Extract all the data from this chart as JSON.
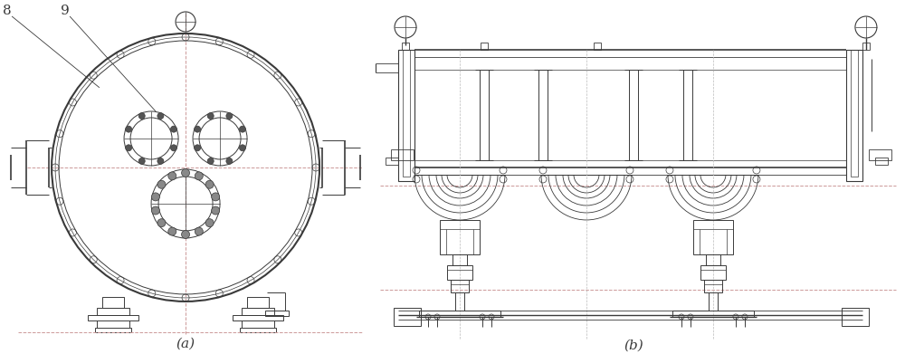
{
  "bg_color": "#ffffff",
  "lc": "#3a3a3a",
  "lc_thin": 0.5,
  "lc_med": 1.0,
  "lc_thick": 1.6,
  "dash_color": "#aaaaaa",
  "cdash_color": "#ccaaaa",
  "green": "#006600",
  "label_8": "8",
  "label_9": "9",
  "label_a": "(a)",
  "label_b": "(b)",
  "fig_w": 10.0,
  "fig_h": 3.91
}
